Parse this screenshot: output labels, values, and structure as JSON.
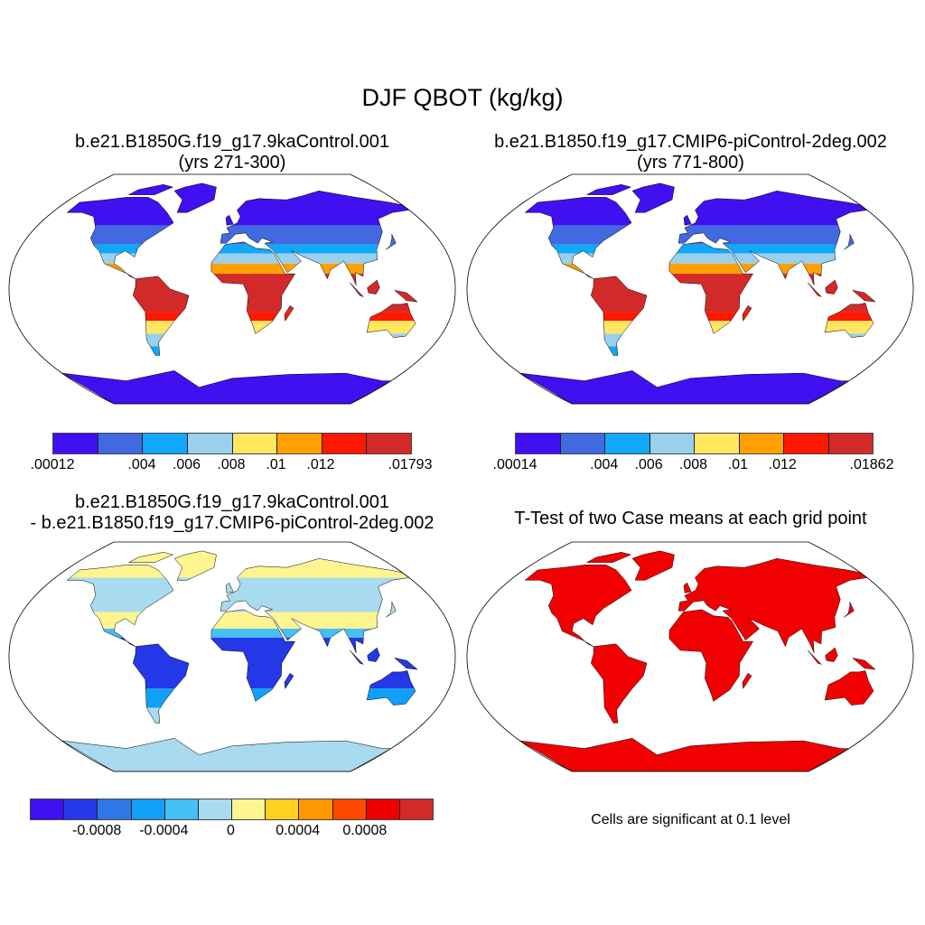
{
  "title": "DJF QBOT (kg/kg)",
  "panels": [
    {
      "title_line1": "b.e21.B1850G.f19_g17.9kaControl.001",
      "title_line2": "(yrs 271-300)"
    },
    {
      "title_line1": "b.e21.B1850.f19_g17.CMIP6-piControl-2deg.002",
      "title_line2": "(yrs 771-800)"
    },
    {
      "title_line1": "b.e21.B1850G.f19_g17.9kaControl.001",
      "title_line2": "- b.e21.B1850.f19_g17.CMIP6-piControl-2deg.002"
    },
    {
      "title_line1": "T-Test of two Case means at each grid point",
      "note": "Cells are significant at 0.1 level"
    }
  ],
  "chart_data": [
    {
      "type": "heatmap",
      "panel": "case1",
      "colorbar": {
        "colors": [
          "#4010f0",
          "#4169e0",
          "#10a8f8",
          "#98d0ee",
          "#ffe860",
          "#ffa000",
          "#ff1800",
          "#d22a2a"
        ],
        "labels": [
          ".00012",
          ".004",
          ".006",
          ".008",
          ".01",
          ".012",
          ".01793"
        ],
        "label_positions": [
          0,
          2,
          3,
          4,
          5,
          6,
          8
        ]
      }
    },
    {
      "type": "heatmap",
      "panel": "case2",
      "colorbar": {
        "colors": [
          "#4010f0",
          "#4169e0",
          "#10a8f8",
          "#98d0ee",
          "#ffe860",
          "#ffa000",
          "#ff1800",
          "#d22a2a"
        ],
        "labels": [
          ".00014",
          ".004",
          ".006",
          ".008",
          ".01",
          ".012",
          ".01862"
        ],
        "label_positions": [
          0,
          2,
          3,
          4,
          5,
          6,
          8
        ]
      }
    },
    {
      "type": "heatmap",
      "panel": "difference",
      "colorbar": {
        "colors": [
          "#4010f0",
          "#2438e8",
          "#3078e8",
          "#10a0f8",
          "#44c0f4",
          "#a8daf0",
          "#fff590",
          "#ffd020",
          "#ff9800",
          "#ff4800",
          "#ee0000",
          "#d22a2a"
        ],
        "labels": [
          "-0.0008",
          "-0.0004",
          "0",
          "0.0004",
          "0.0008"
        ],
        "label_positions": [
          2,
          4,
          6,
          8,
          10
        ]
      }
    },
    {
      "type": "heatmap",
      "panel": "ttest",
      "significant_color": "#f00000"
    }
  ]
}
